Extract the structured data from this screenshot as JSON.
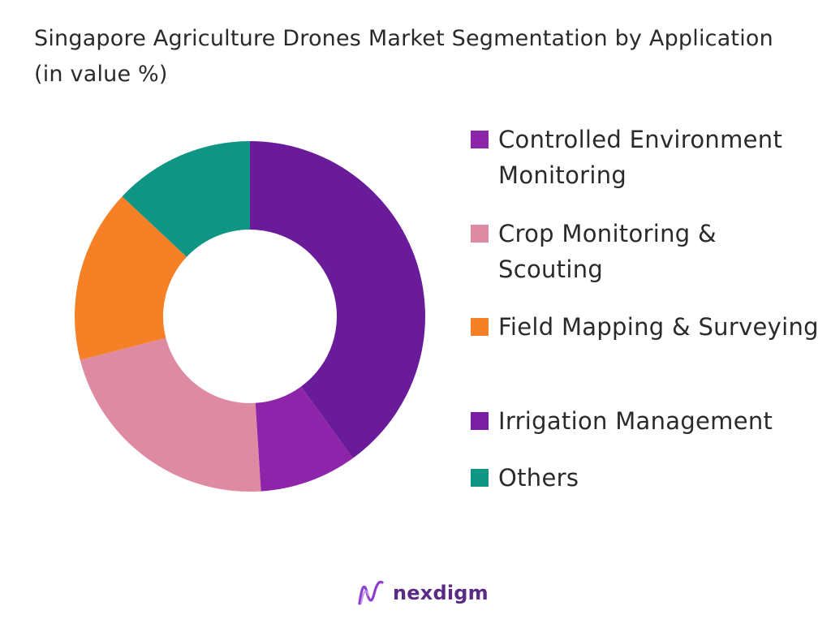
{
  "chart_data": {
    "type": "pie",
    "donut": true,
    "title": "Singapore Agriculture Drones Market Segmentation by Application (in value %)",
    "categories": [
      "Controlled Environment Monitoring",
      "Crop Monitoring & Scouting",
      "Field Mapping & Surveying",
      "Irrigation Management",
      "Others"
    ],
    "values": [
      40,
      22,
      16,
      9,
      13
    ],
    "slice_order_clockwise_from_top": [
      "Controlled Environment Monitoring",
      "Irrigation Management",
      "Crop Monitoring & Scouting",
      "Field Mapping & Surveying",
      "Others"
    ],
    "colors": {
      "Controlled Environment Monitoring": "#6a1b9a",
      "Crop Monitoring & Scouting": "#de8aa2",
      "Field Mapping & Surveying": "#f58025",
      "Irrigation Management": "#8e24aa",
      "Others": "#0f9584"
    },
    "legend_swatch_colors": [
      "#8e24aa",
      "#de8aa2",
      "#f58025",
      "#7b1fa2",
      "#0f9584"
    ],
    "legend_position": "right"
  },
  "brand": {
    "name": "nexdigm",
    "color": "#5a2b84"
  }
}
